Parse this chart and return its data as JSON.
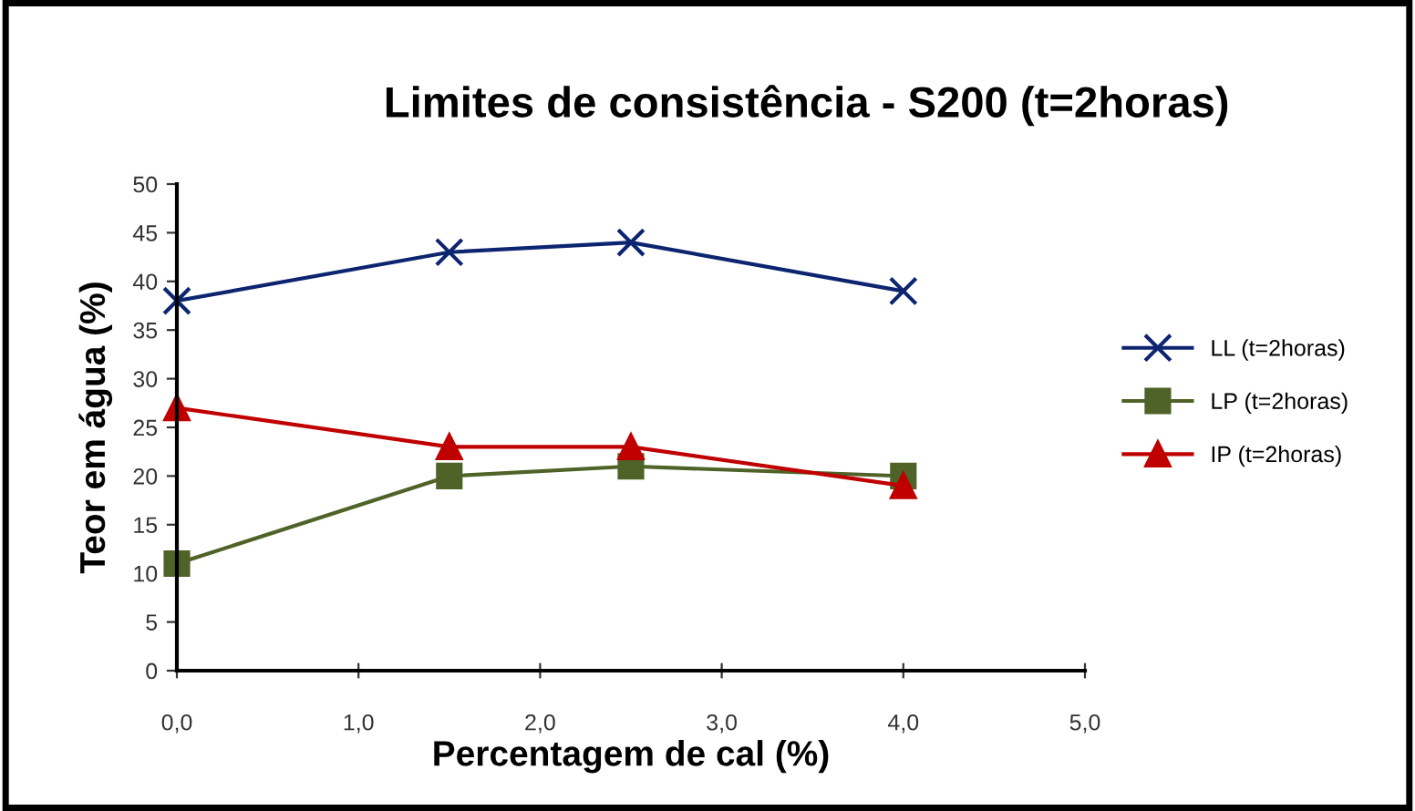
{
  "chart_data": {
    "type": "line",
    "title": "Limites de consistência - S200 (t=2horas)",
    "xlabel": "Percentagem de cal (%)",
    "ylabel": "Teor em água (%)",
    "x": [
      0,
      1.5,
      2.5,
      4
    ],
    "series": [
      {
        "name": "LL (t=2horas)",
        "color": "#0d2570",
        "marker": "cross",
        "values": [
          38,
          43,
          44,
          39
        ]
      },
      {
        "name": "LP (t=2horas)",
        "color": "#4f6228",
        "marker": "square",
        "values": [
          11,
          20,
          21,
          20
        ]
      },
      {
        "name": "IP (t=2horas)",
        "color": "#c00000",
        "marker": "triangle",
        "values": [
          27,
          23,
          23,
          19
        ]
      }
    ],
    "xlim": [
      0,
      5
    ],
    "xticks": [
      {
        "value": 0,
        "label": "0,0"
      },
      {
        "value": 1,
        "label": "1,0"
      },
      {
        "value": 2,
        "label": "2,0"
      },
      {
        "value": 3,
        "label": "3,0"
      },
      {
        "value": 4,
        "label": "4,0"
      },
      {
        "value": 5,
        "label": "5,0"
      }
    ],
    "ylim": [
      0,
      50
    ],
    "yticks": [
      0,
      5,
      10,
      15,
      20,
      25,
      30,
      35,
      40,
      45,
      50
    ],
    "grid": false,
    "legend": "right",
    "line_style": "solid"
  }
}
